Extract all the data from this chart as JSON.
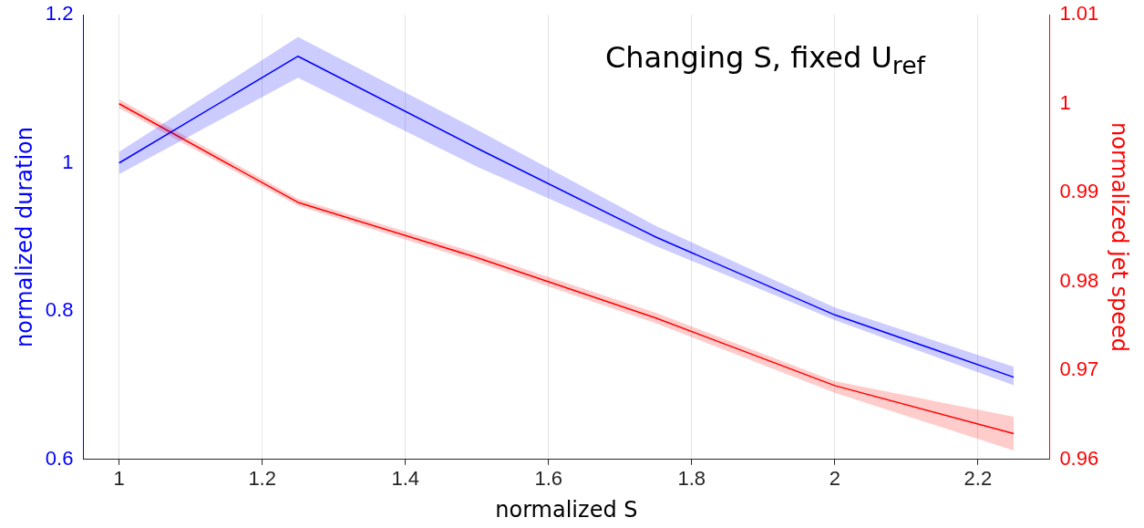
{
  "chart_data": {
    "type": "line",
    "title": "Changing S, fixed U$_{ref}$",
    "xlabel": "normalized S",
    "ylabel": "normalized duration",
    "y2label": "normalized jet speed",
    "x": [
      1,
      1.25,
      1.5,
      1.75,
      2,
      2.25
    ],
    "xlim": [
      0.95,
      2.3
    ],
    "xticks": [
      1,
      1.2,
      1.4,
      1.6,
      1.8,
      2,
      2.2
    ],
    "ylim": [
      0.6,
      1.2
    ],
    "yticks": [
      0.6,
      0.8,
      1,
      1.2
    ],
    "y2lim": [
      0.96,
      1.01
    ],
    "y2ticks": [
      0.96,
      0.97,
      0.98,
      0.99,
      1,
      1.01
    ],
    "grid": "x",
    "legend": false,
    "marker": "none",
    "line_style": "solid",
    "series": [
      {
        "color": "#0000ff",
        "values": [
          1.0,
          1.144,
          1.02,
          0.9,
          0.795,
          0.711
        ],
        "lower": [
          0.985,
          1.115,
          0.995,
          0.888,
          0.788,
          0.7
        ],
        "upper": [
          1.015,
          1.17,
          1.045,
          0.915,
          0.805,
          0.725
        ]
      },
      {
        "color": "#ff0000",
        "axis": "y2",
        "values": [
          1.0,
          0.9889,
          0.9827,
          0.9759,
          0.9683,
          0.9629
        ],
        "lower": [
          0.9995,
          0.9885,
          0.9822,
          0.9753,
          0.9675,
          0.961
        ],
        "upper": [
          1.0005,
          0.9893,
          0.9832,
          0.9765,
          0.9688,
          0.9648
        ]
      }
    ]
  }
}
